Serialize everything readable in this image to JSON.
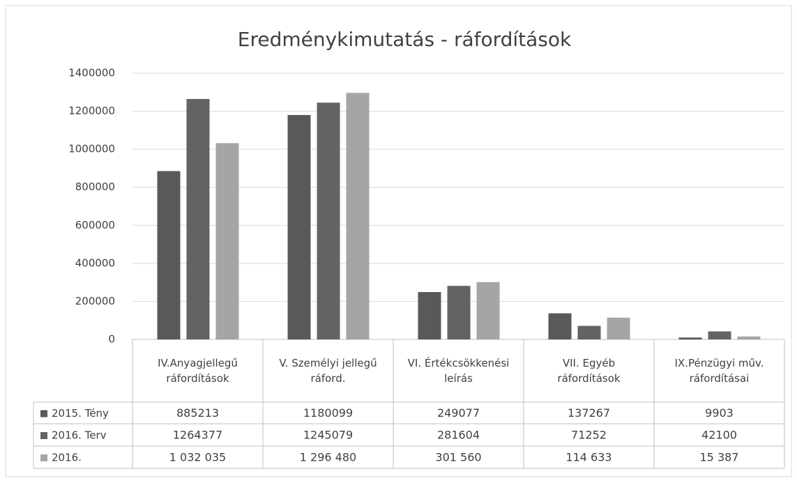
{
  "chart_data": {
    "type": "bar",
    "title": "Eredménykimutatás - ráfordítások",
    "categories": [
      "IV.Anyagjellegű ráfordítások",
      "V. Személyi jellegű ráford.",
      "VI. Értékcsökkenési leírás",
      "VII. Egyéb ráfordítások",
      "IX.Pénzügyi műv. ráfordításai"
    ],
    "series": [
      {
        "name": "2015. Tény",
        "color": "#595959",
        "values": [
          885213,
          1180099,
          249077,
          137267,
          9903
        ]
      },
      {
        "name": "2016. Terv",
        "color": "#636363",
        "values": [
          1264377,
          1245079,
          281604,
          71252,
          42100
        ]
      },
      {
        "name": "2016.",
        "color": "#a5a5a5",
        "values": [
          1032035,
          1296480,
          301560,
          114633,
          15387
        ],
        "value_labels": [
          "1 032 035",
          "1 296 480",
          "301 560",
          "114 633",
          "15 387"
        ]
      }
    ],
    "ylim": [
      0,
      1400000
    ],
    "yticks": [
      0,
      200000,
      400000,
      600000,
      800000,
      1000000,
      1200000,
      1400000
    ],
    "grid": true
  }
}
